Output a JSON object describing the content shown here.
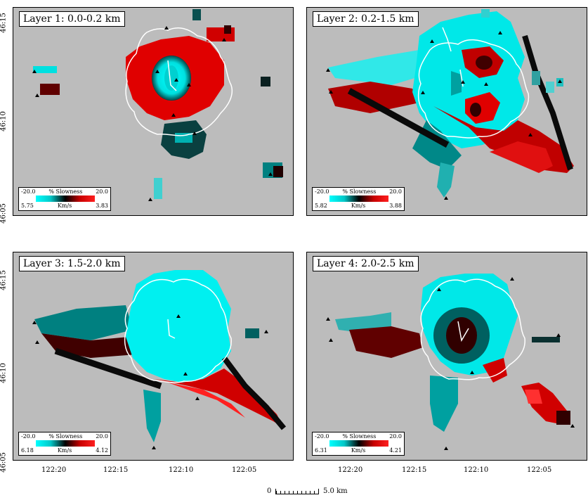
{
  "panels": [
    {
      "title": "Layer  1: 0.0-0.2 km",
      "legend": {
        "slow_min": "-20.0",
        "slow_label": "% Slowness",
        "slow_max": "20.0",
        "vel_left": "5.75",
        "vel_label": "Km/s",
        "vel_right": "3.83"
      }
    },
    {
      "title": "Layer  2: 0.2-1.5 km",
      "legend": {
        "slow_min": "-20.0",
        "slow_label": "% Slowness",
        "slow_max": "20.0",
        "vel_left": "5.82",
        "vel_label": "Km/s",
        "vel_right": "3.88"
      }
    },
    {
      "title": "Layer  3: 1.5-2.0 km",
      "legend": {
        "slow_min": "-20.0",
        "slow_label": "% Slowness",
        "slow_max": "20.0",
        "vel_left": "6.18",
        "vel_label": "Km/s",
        "vel_right": "4.12"
      }
    },
    {
      "title": "Layer  4: 2.0-2.5 km",
      "legend": {
        "slow_min": "-20.0",
        "slow_label": "% Slowness",
        "slow_max": "20.0",
        "vel_left": "6.31",
        "vel_label": "Km/s",
        "vel_right": "4.21"
      }
    }
  ],
  "lat_ticks": [
    "46:15",
    "46:10",
    "46:05"
  ],
  "lon_ticks": [
    "122:20",
    "122:15",
    "122:10",
    "122:05"
  ],
  "scale_bar": {
    "left": "0",
    "right": "5.0 km"
  },
  "colors": {
    "background": "#bcbcbc",
    "fast": "#00ffff",
    "slow": "#ff2020",
    "neutral": "#000000",
    "outline": "#ffffff"
  }
}
